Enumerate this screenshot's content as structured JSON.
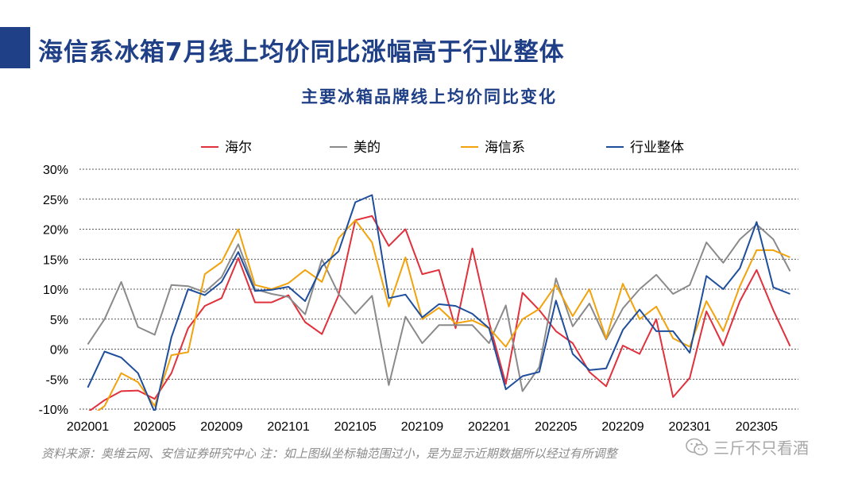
{
  "page": {
    "title": "海信系冰箱7月线上均价同比涨幅高于行业整体",
    "source_note": "资料来源：奥维云网、安信证券研究中心 注：如上图纵坐标轴范围过小，是为显示近期数据所以经过有所调整",
    "watermark": "三斤不只看酒"
  },
  "colors": {
    "title": "#1f3f86",
    "haier": "#e0313c",
    "midea": "#8a8a8a",
    "hisense": "#f2a20c",
    "industry": "#1f4e9c"
  },
  "chart_data": {
    "type": "line",
    "title": "主要冰箱品牌线上均价同比变化",
    "xlabel": "",
    "ylabel": "",
    "ylim": [
      -0.1,
      0.3
    ],
    "yticks": [
      -0.1,
      -0.05,
      0.0,
      0.05,
      0.1,
      0.15,
      0.2,
      0.25,
      0.3
    ],
    "ytick_labels": [
      "-10%",
      "-5%",
      "0%",
      "5%",
      "10%",
      "15%",
      "20%",
      "25%",
      "30%"
    ],
    "x": [
      "202001",
      "202002",
      "202003",
      "202004",
      "202005",
      "202006",
      "202007",
      "202008",
      "202009",
      "202010",
      "202011",
      "202012",
      "202101",
      "202102",
      "202103",
      "202104",
      "202105",
      "202106",
      "202107",
      "202108",
      "202109",
      "202110",
      "202111",
      "202112",
      "202201",
      "202202",
      "202203",
      "202204",
      "202205",
      "202206",
      "202207",
      "202208",
      "202209",
      "202210",
      "202211",
      "202212",
      "202301",
      "202302",
      "202303",
      "202304",
      "202305",
      "202306",
      "202307"
    ],
    "xtick_labels": [
      "202001",
      "202005",
      "202009",
      "202101",
      "202105",
      "202109",
      "202201",
      "202205",
      "202209",
      "202301",
      "202305"
    ],
    "xtick_indices": [
      0,
      4,
      8,
      12,
      16,
      20,
      24,
      28,
      32,
      36,
      40
    ],
    "legend": "top",
    "series": [
      {
        "name": "海尔",
        "color_key": "haier",
        "values": [
          -0.105,
          -0.085,
          -0.07,
          -0.069,
          -0.083,
          -0.04,
          0.035,
          0.072,
          0.085,
          0.152,
          0.078,
          0.078,
          0.09,
          0.045,
          0.025,
          0.09,
          0.215,
          0.222,
          0.172,
          0.2,
          0.125,
          0.132,
          0.035,
          0.168,
          0.045,
          -0.058,
          0.094,
          0.065,
          0.03,
          0.01,
          -0.038,
          -0.062,
          0.006,
          -0.008,
          0.05,
          -0.08,
          -0.048,
          0.063,
          0.006,
          0.08,
          0.132,
          0.065,
          0.005
        ]
      },
      {
        "name": "美的",
        "color_key": "midea",
        "values": [
          0.008,
          0.05,
          0.112,
          0.037,
          0.024,
          0.107,
          0.105,
          0.095,
          0.12,
          0.175,
          0.1,
          0.092,
          0.087,
          0.058,
          0.15,
          0.092,
          0.059,
          0.089,
          -0.06,
          0.054,
          0.01,
          0.04,
          0.04,
          0.04,
          0.01,
          0.073,
          -0.07,
          -0.03,
          0.118,
          0.038,
          0.076,
          0.016,
          0.068,
          0.1,
          0.124,
          0.092,
          0.107,
          0.178,
          0.144,
          0.183,
          0.208,
          0.183,
          0.13
        ]
      },
      {
        "name": "海信系",
        "color_key": "hisense",
        "values": [
          -0.115,
          -0.095,
          -0.04,
          -0.055,
          -0.095,
          -0.01,
          -0.005,
          0.125,
          0.145,
          0.2,
          0.107,
          0.1,
          0.11,
          0.132,
          0.112,
          0.185,
          0.215,
          0.178,
          0.071,
          0.153,
          0.05,
          0.069,
          0.043,
          0.048,
          0.035,
          0.004,
          0.05,
          0.067,
          0.107,
          0.055,
          0.1,
          0.018,
          0.109,
          0.05,
          0.071,
          0.018,
          0.004,
          0.08,
          0.03,
          0.105,
          0.165,
          0.165,
          0.153
        ]
      },
      {
        "name": "行业整体",
        "color_key": "industry",
        "values": [
          -0.064,
          -0.004,
          -0.014,
          -0.04,
          -0.105,
          0.02,
          0.1,
          0.09,
          0.112,
          0.162,
          0.097,
          0.099,
          0.104,
          0.08,
          0.138,
          0.163,
          0.245,
          0.257,
          0.085,
          0.091,
          0.053,
          0.075,
          0.072,
          0.059,
          0.035,
          -0.067,
          -0.045,
          -0.038,
          0.081,
          -0.008,
          -0.035,
          -0.032,
          0.032,
          0.066,
          0.03,
          0.03,
          -0.006,
          0.122,
          0.1,
          0.135,
          0.212,
          0.103,
          0.092
        ]
      }
    ]
  }
}
